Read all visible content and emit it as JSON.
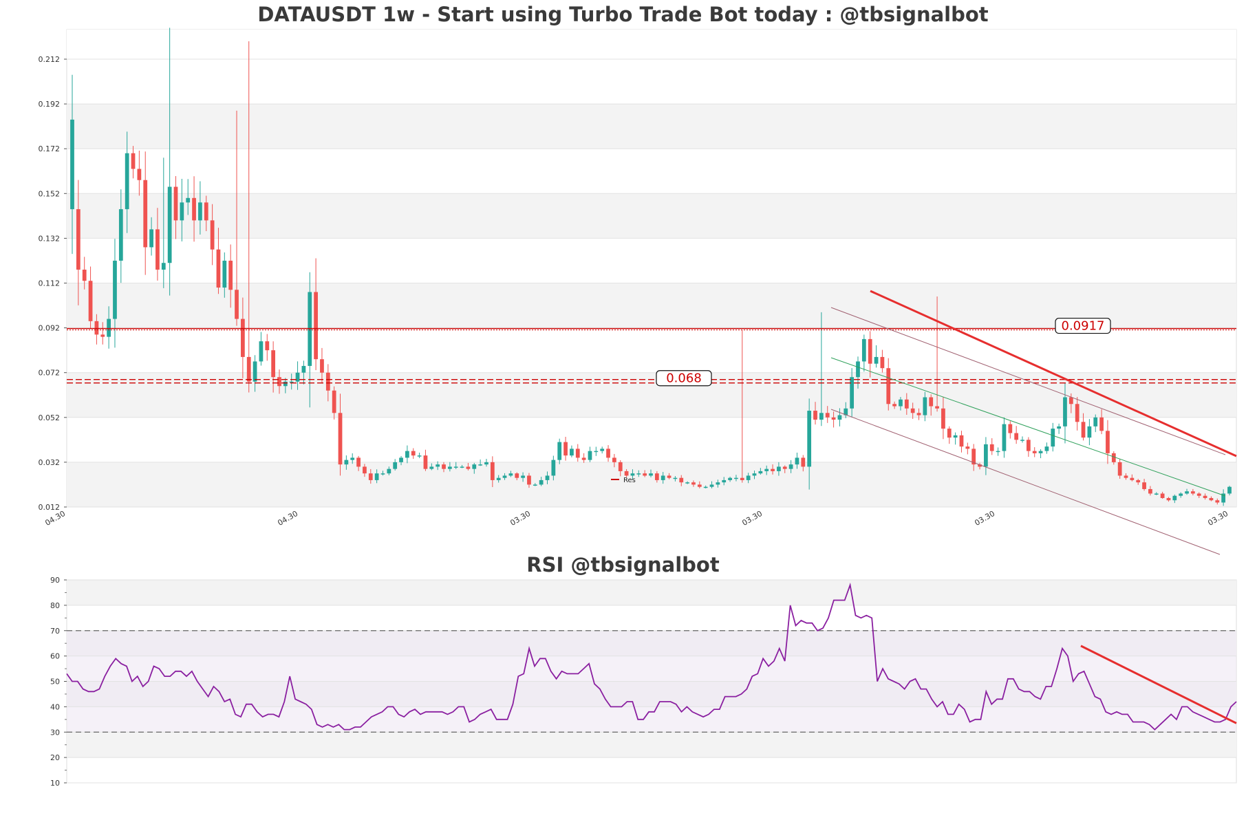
{
  "chart_data": [
    {
      "type": "candlestick",
      "title": "DATAUSDT 1w - Start using Turbo Trade Bot today : @tbsignalbot",
      "ylim": [
        0.012,
        0.225
      ],
      "ytick_values": [
        0.012,
        0.032,
        0.052,
        0.072,
        0.092,
        0.112,
        0.132,
        0.152,
        0.172,
        0.192,
        0.212
      ],
      "ytick_labels": [
        "0.012",
        "0.032",
        "0.052",
        "0.072",
        "0.092",
        "0.112",
        "0.132",
        "0.152",
        "0.172",
        "0.192",
        "0.212"
      ],
      "xtick_labels": [
        "04.30",
        "04.30",
        "03.30",
        "03.30",
        "03.30",
        "03.30"
      ],
      "grid": true,
      "up_color": "#26a69a",
      "down_color": "#ef5350",
      "horizontal_levels": [
        {
          "value": 0.0917,
          "label": "0.0917",
          "style": "dotted",
          "color": "#cc0000"
        },
        {
          "value": 0.068,
          "label": "0.068",
          "style": "dashed",
          "color": "#cc0000"
        }
      ],
      "legend": [
        {
          "label": "Res",
          "color": "#cc0000"
        }
      ],
      "legend_position": "center-bottom",
      "closes": [
        0.145,
        0.118,
        0.113,
        0.095,
        0.089,
        0.088,
        0.096,
        0.122,
        0.145,
        0.17,
        0.163,
        0.158,
        0.128,
        0.136,
        0.118,
        0.121,
        0.155,
        0.14,
        0.148,
        0.15,
        0.14,
        0.148,
        0.14,
        0.127,
        0.11,
        0.122,
        0.109,
        0.096,
        0.079,
        0.068,
        0.077,
        0.086,
        0.082,
        0.07,
        0.066,
        0.068,
        0.068,
        0.072,
        0.075,
        0.108,
        0.078,
        0.072,
        0.064,
        0.054,
        0.031,
        0.033,
        0.034,
        0.03,
        0.027,
        0.024,
        0.027,
        0.027,
        0.029,
        0.032,
        0.034,
        0.037,
        0.035,
        0.035,
        0.029,
        0.03,
        0.031,
        0.029,
        0.03,
        0.03,
        0.03,
        0.029,
        0.031,
        0.031,
        0.032,
        0.024,
        0.025,
        0.026,
        0.027,
        0.025,
        0.026,
        0.022,
        0.022,
        0.024,
        0.026,
        0.033,
        0.041,
        0.035,
        0.038,
        0.034,
        0.033,
        0.037,
        0.037,
        0.038,
        0.034,
        0.032,
        0.028,
        0.026,
        0.027,
        0.027,
        0.026,
        0.027,
        0.024,
        0.026,
        0.025,
        0.025,
        0.023,
        0.023,
        0.022,
        0.021,
        0.021,
        0.022,
        0.023,
        0.024,
        0.025,
        0.025,
        0.024,
        0.026,
        0.027,
        0.028,
        0.029,
        0.028,
        0.03,
        0.029,
        0.031,
        0.034,
        0.03,
        0.055,
        0.051,
        0.054,
        0.052,
        0.051,
        0.053,
        0.056,
        0.07,
        0.077,
        0.087,
        0.076,
        0.079,
        0.074,
        0.058,
        0.057,
        0.06,
        0.056,
        0.054,
        0.053,
        0.061,
        0.057,
        0.056,
        0.047,
        0.043,
        0.044,
        0.039,
        0.038,
        0.031,
        0.03,
        0.04,
        0.037,
        0.037,
        0.049,
        0.045,
        0.042,
        0.042,
        0.037,
        0.036,
        0.037,
        0.039,
        0.047,
        0.048,
        0.061,
        0.058,
        0.05,
        0.043,
        0.048,
        0.052,
        0.046,
        0.036,
        0.032,
        0.026,
        0.025,
        0.024,
        0.023,
        0.02,
        0.018,
        0.018,
        0.016,
        0.015,
        0.017,
        0.018,
        0.019,
        0.018,
        0.017,
        0.016,
        0.015,
        0.014,
        0.018,
        0.021
      ]
    },
    {
      "type": "line",
      "title": "RSI @tbsignalbot",
      "ylim": [
        10,
        90
      ],
      "ytick_values": [
        10,
        20,
        30,
        40,
        50,
        60,
        70,
        80,
        90
      ],
      "ytick_labels": [
        "10",
        "20",
        "30",
        "40",
        "50",
        "60",
        "70",
        "80",
        "90"
      ],
      "overbought": 70,
      "oversold": 30,
      "line_color": "#8a1fa0",
      "trend_color": "#e62e2e",
      "values": [
        53,
        50,
        50,
        47,
        46,
        46,
        47,
        52,
        56,
        59,
        57,
        56,
        50,
        52,
        48,
        50,
        56,
        55,
        52,
        52,
        54,
        54,
        52,
        54,
        50,
        47,
        44,
        48,
        46,
        42,
        43,
        37,
        36,
        41,
        41,
        38,
        36,
        37,
        37,
        36,
        42,
        52,
        43,
        42,
        41,
        39,
        33,
        32,
        33,
        32,
        33,
        31,
        31,
        32,
        32,
        34,
        36,
        37,
        38,
        40,
        40,
        37,
        36,
        38,
        39,
        37,
        38,
        38,
        38,
        38,
        37,
        38,
        40,
        40,
        34,
        35,
        37,
        38,
        39,
        35,
        35,
        35,
        41,
        52,
        53,
        63,
        56,
        59,
        59,
        54,
        51,
        54,
        53,
        53,
        53,
        55,
        57,
        49,
        47,
        43,
        40,
        40,
        40,
        42,
        42,
        35,
        35,
        38,
        38,
        42,
        42,
        42,
        41,
        38,
        40,
        38,
        37,
        36,
        37,
        39,
        39,
        44,
        44,
        44,
        45,
        47,
        52,
        53,
        59,
        56,
        58,
        63,
        58,
        80,
        72,
        74,
        73,
        73,
        70,
        71,
        75,
        82,
        82,
        82,
        88,
        76,
        75,
        76,
        75,
        50,
        55,
        51,
        50,
        49,
        47,
        50,
        51,
        47,
        47,
        43,
        40,
        42,
        37,
        37,
        41,
        39,
        34,
        35,
        35,
        46,
        41,
        43,
        43,
        51,
        51,
        47,
        46,
        46,
        44,
        43,
        48,
        48,
        55,
        63,
        60,
        50,
        53,
        54,
        49,
        44,
        43,
        38,
        37,
        38,
        37,
        37,
        34,
        34,
        34,
        33,
        31,
        33,
        35,
        37,
        35,
        40,
        40,
        38,
        37,
        36,
        35,
        34,
        34,
        35,
        40,
        42
      ]
    }
  ]
}
